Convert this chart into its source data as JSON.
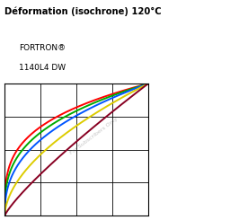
{
  "title_line1": "Déformation (isochrone) 120°C",
  "subtitle_line1": "FORTRON®",
  "subtitle_line2": "1140L4 DW",
  "watermark": "For Subscribers Only",
  "curves": [
    {
      "color": "#ff0000",
      "label": "red"
    },
    {
      "color": "#00aa00",
      "label": "green"
    },
    {
      "color": "#0055ff",
      "label": "blue"
    },
    {
      "color": "#ddcc00",
      "label": "yellow"
    },
    {
      "color": "#880022",
      "label": "darkred"
    }
  ],
  "xlim": [
    0,
    1
  ],
  "ylim": [
    0,
    1
  ],
  "grid_nx": 4,
  "grid_ny": 4,
  "bg_color": "#ffffff"
}
